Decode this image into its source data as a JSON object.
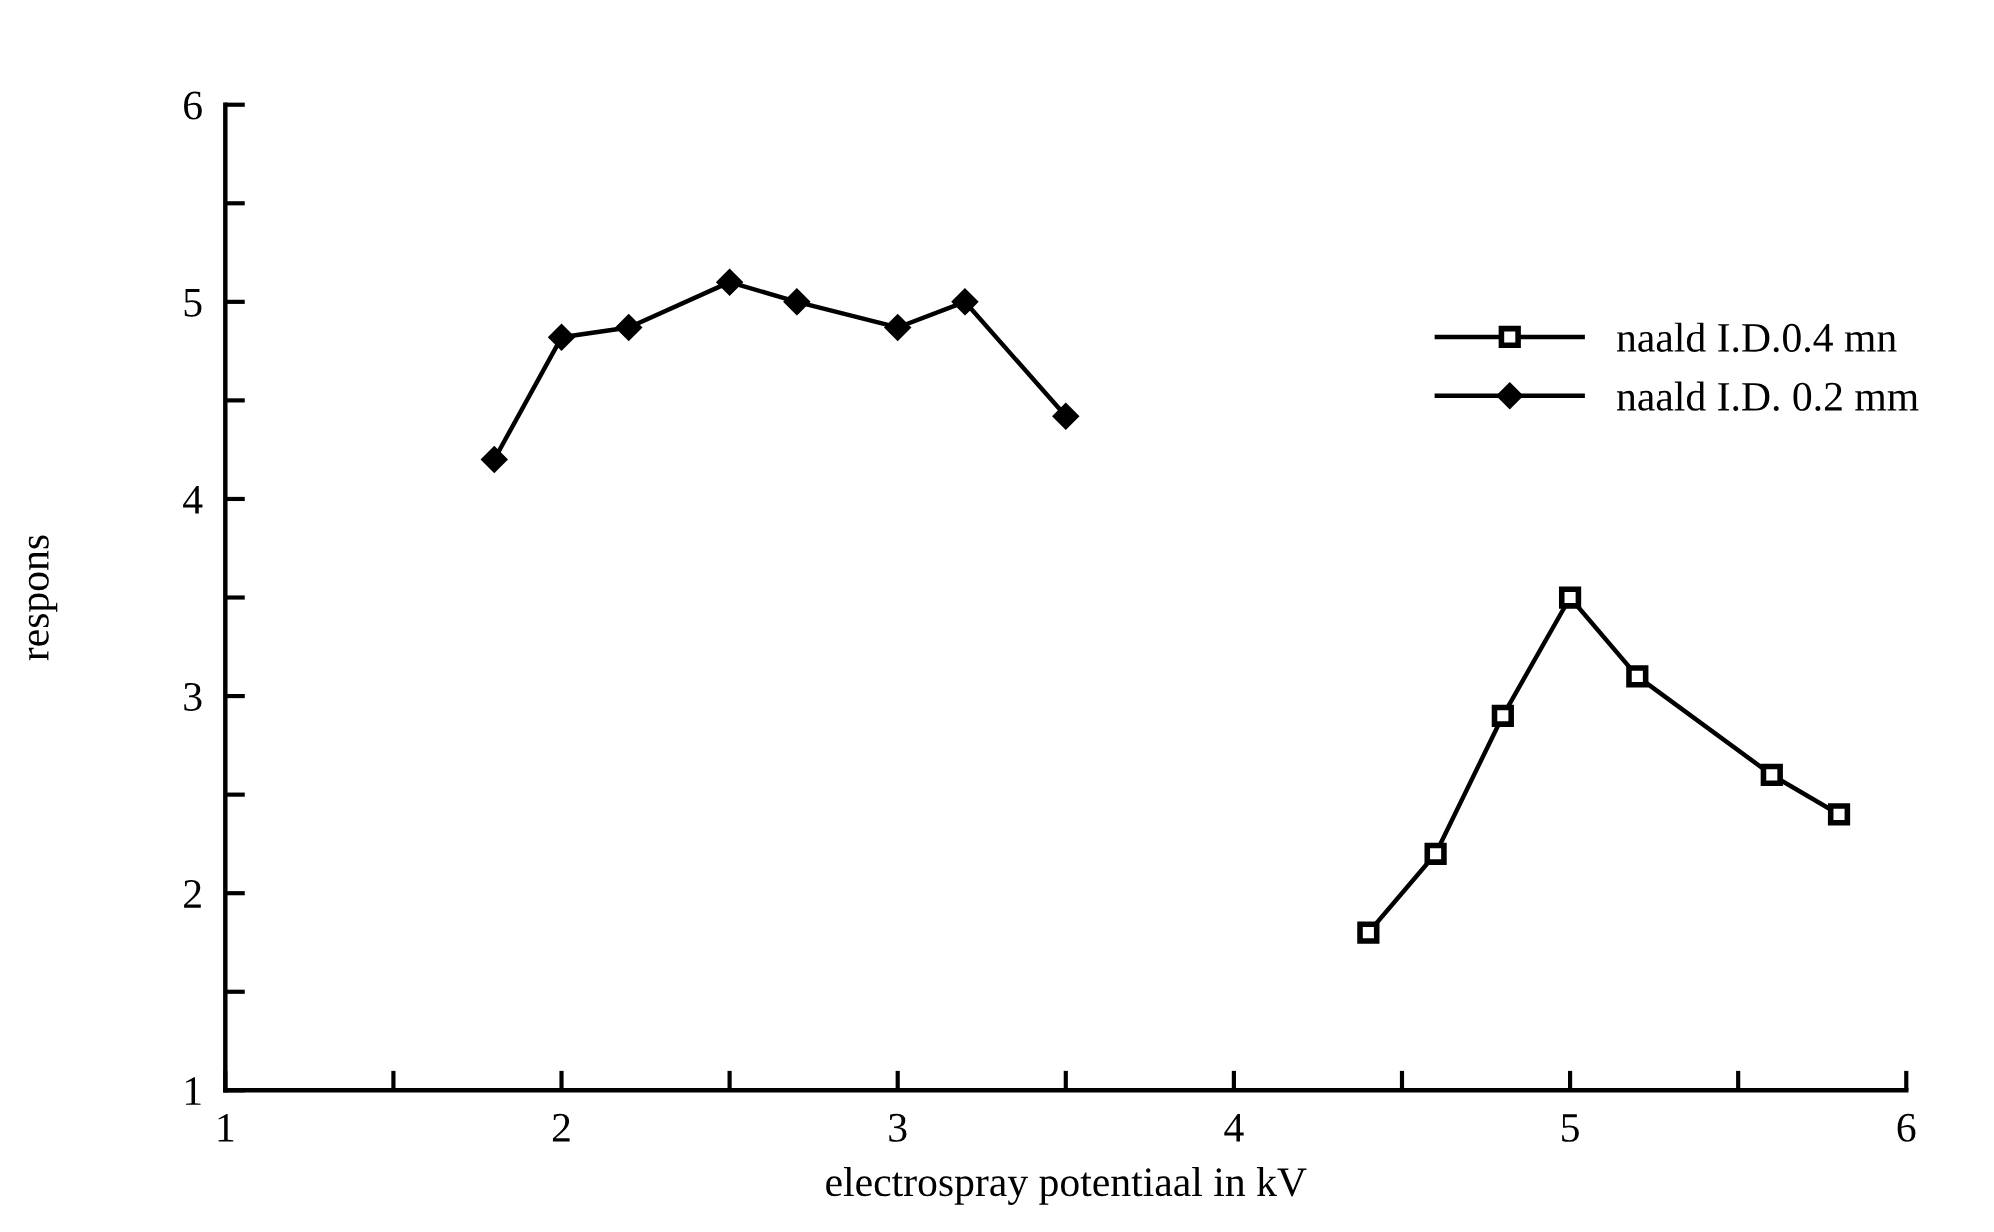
{
  "chart_data": {
    "type": "line",
    "xlabel": "electrospray potentiaal in kV",
    "ylabel": "respons",
    "xlim": [
      1,
      6
    ],
    "ylim": [
      1,
      6
    ],
    "xticks": [
      1,
      {
        "value": 1.5,
        "label": null
      },
      2,
      {
        "value": 2.5,
        "label": null
      },
      3,
      {
        "value": 3.5,
        "label": null
      },
      4,
      {
        "value": 4.5,
        "label": null
      },
      5,
      {
        "value": 5.5,
        "label": null
      },
      6
    ],
    "yticks": [
      1,
      {
        "value": 1.5,
        "label": null
      },
      2,
      {
        "value": 2.5,
        "label": null
      },
      3,
      {
        "value": 3.5,
        "label": null
      },
      4,
      {
        "value": 4.5,
        "label": null
      },
      5,
      {
        "value": 5.5,
        "label": null
      },
      6
    ],
    "grid": false,
    "legend": "right",
    "line_style": "solid",
    "series": [
      {
        "name": "naald I.D.0.4 mn",
        "color": "#000000",
        "marker": "square",
        "x": [
          4.4,
          4.6,
          4.8,
          5.0,
          5.2,
          5.6,
          5.8
        ],
        "values": [
          1.8,
          2.2,
          2.9,
          3.5,
          3.1,
          2.6,
          2.4
        ]
      },
      {
        "name": "naald I.D. 0.2 mm",
        "color": "#000000",
        "marker": "diamond",
        "x": [
          1.8,
          2.0,
          2.2,
          2.5,
          2.7,
          3.0,
          3.2,
          3.5
        ],
        "values": [
          4.2,
          4.82,
          4.87,
          5.1,
          5.0,
          4.87,
          5.0,
          4.42
        ]
      }
    ]
  }
}
